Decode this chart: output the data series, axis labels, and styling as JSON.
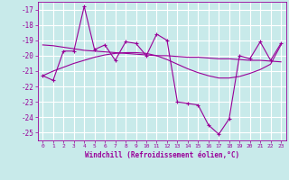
{
  "bg_color": "#c8eaea",
  "grid_color": "#a0c8c8",
  "line_color": "#990099",
  "marker_color": "#990099",
  "xlabel": "Windchill (Refroidissement éolien,°C)",
  "xlim": [
    -0.5,
    23.5
  ],
  "ylim": [
    -25.5,
    -16.5
  ],
  "yticks": [
    -25,
    -24,
    -23,
    -22,
    -21,
    -20,
    -19,
    -18,
    -17
  ],
  "xticks": [
    0,
    1,
    2,
    3,
    4,
    5,
    6,
    7,
    8,
    9,
    10,
    11,
    12,
    13,
    14,
    15,
    16,
    17,
    18,
    19,
    20,
    21,
    22,
    23
  ],
  "x_data": [
    0,
    1,
    2,
    3,
    4,
    5,
    6,
    7,
    8,
    9,
    10,
    11,
    12,
    13,
    14,
    15,
    16,
    17,
    18,
    19,
    20,
    21,
    22,
    23
  ],
  "y_main": [
    -21.3,
    -21.6,
    -19.7,
    -19.7,
    -16.8,
    -19.6,
    -19.3,
    -20.3,
    -19.1,
    -19.2,
    -20.0,
    -18.6,
    -19.0,
    -23.0,
    -23.1,
    -23.2,
    -24.5,
    -25.1,
    -24.1,
    -20.0,
    -20.2,
    -19.1,
    -20.3,
    -19.2
  ],
  "y_smooth1": [
    -19.3,
    -19.35,
    -19.45,
    -19.55,
    -19.65,
    -19.7,
    -19.75,
    -19.8,
    -19.85,
    -19.9,
    -19.95,
    -20.0,
    -20.0,
    -20.05,
    -20.1,
    -20.1,
    -20.15,
    -20.2,
    -20.2,
    -20.25,
    -20.3,
    -20.3,
    -20.35,
    -20.4
  ],
  "y_smooth2": [
    -21.3,
    -21.0,
    -20.75,
    -20.5,
    -20.3,
    -20.1,
    -19.95,
    -19.85,
    -19.8,
    -19.8,
    -19.85,
    -20.0,
    -20.25,
    -20.55,
    -20.85,
    -21.1,
    -21.3,
    -21.45,
    -21.45,
    -21.35,
    -21.15,
    -20.9,
    -20.55,
    -19.3
  ]
}
